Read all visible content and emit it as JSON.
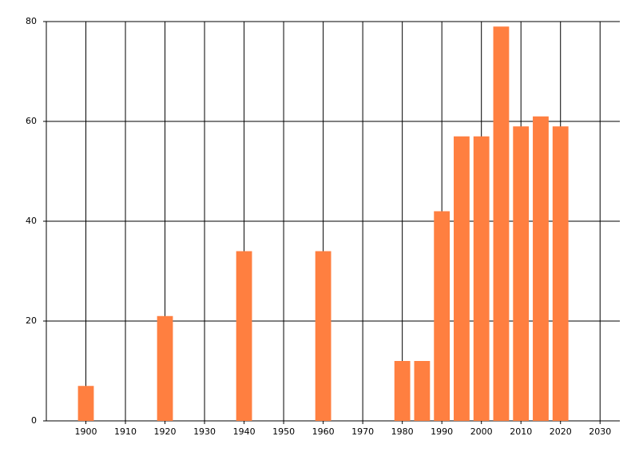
{
  "chart_data": {
    "type": "bar",
    "x": [
      1900,
      1920,
      1940,
      1960,
      1980,
      1985,
      1990,
      1995,
      2000,
      2005,
      2010,
      2015,
      2020
    ],
    "values": [
      7,
      21,
      34,
      34,
      12,
      12,
      42,
      57,
      57,
      79,
      59,
      61,
      59
    ],
    "color": "#ff7f40",
    "xlim": [
      1890,
      2035
    ],
    "xticks": [
      1900,
      1910,
      1920,
      1930,
      1940,
      1950,
      1960,
      1970,
      1980,
      1990,
      2000,
      2010,
      2020,
      2030
    ],
    "ylim": [
      0,
      80
    ],
    "yticks": [
      0,
      20,
      40,
      60,
      80
    ],
    "grid": true
  }
}
